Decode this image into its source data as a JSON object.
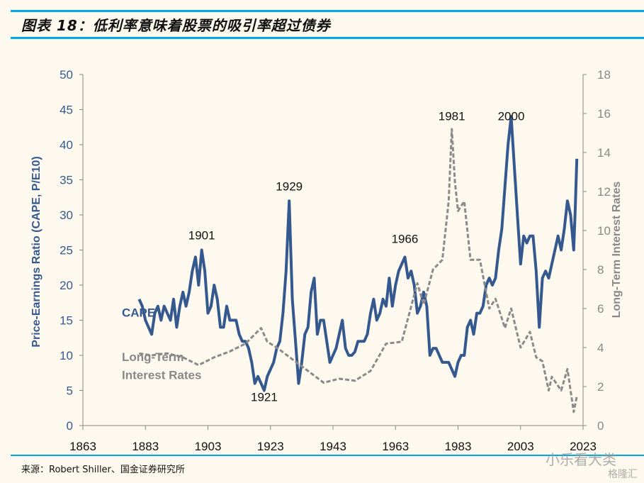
{
  "title": "图表 18：低利率意味着股票的吸引率超过债券",
  "source": "来源：Robert Shiller、国金证券研究所",
  "watermarks": [
    "小乐看大类",
    "格隆汇"
  ],
  "colors": {
    "cape": "#35598f",
    "rates": "#8a8a8a",
    "rule": "#00a9e8"
  },
  "chart_data": {
    "type": "line",
    "title": "",
    "xlabel": "",
    "ylabel": "Price-Earnings Ratio (CAPE, P/E10)",
    "y2label": "Long-Term Interest Rates",
    "xlim": [
      1863,
      2023
    ],
    "ylim": [
      0,
      50
    ],
    "y2lim": [
      0,
      18
    ],
    "xticks": [
      "1863",
      "1883",
      "1903",
      "1923",
      "1943",
      "1963",
      "1983",
      "2003",
      "2023"
    ],
    "yticks": [
      "0",
      "5",
      "10",
      "15",
      "20",
      "25",
      "30",
      "35",
      "40",
      "45",
      "50"
    ],
    "y2ticks": [
      "0",
      "2",
      "4",
      "6",
      "8",
      "10",
      "12",
      "14",
      "16",
      "18"
    ],
    "grid": false,
    "series": [
      {
        "name": "CAPE",
        "axis": "left",
        "style": "solid",
        "x": [
          1881,
          1882,
          1883,
          1884,
          1885,
          1886,
          1887,
          1888,
          1889,
          1890,
          1891,
          1892,
          1893,
          1894,
          1895,
          1896,
          1897,
          1898,
          1899,
          1900,
          1901,
          1902,
          1903,
          1904,
          1905,
          1906,
          1907,
          1908,
          1909,
          1910,
          1911,
          1912,
          1913,
          1914,
          1915,
          1916,
          1917,
          1918,
          1919,
          1920,
          1921,
          1922,
          1923,
          1924,
          1925,
          1926,
          1927,
          1928,
          1929,
          1930,
          1931,
          1932,
          1933,
          1934,
          1935,
          1936,
          1937,
          1938,
          1939,
          1940,
          1941,
          1942,
          1943,
          1944,
          1945,
          1946,
          1947,
          1948,
          1949,
          1950,
          1951,
          1952,
          1953,
          1954,
          1955,
          1956,
          1957,
          1958,
          1959,
          1960,
          1961,
          1962,
          1963,
          1964,
          1965,
          1966,
          1967,
          1968,
          1969,
          1970,
          1971,
          1972,
          1973,
          1974,
          1975,
          1976,
          1977,
          1978,
          1979,
          1980,
          1981,
          1982,
          1983,
          1984,
          1985,
          1986,
          1987,
          1988,
          1989,
          1990,
          1991,
          1992,
          1993,
          1994,
          1995,
          1996,
          1997,
          1998,
          1999,
          2000,
          2001,
          2002,
          2003,
          2004,
          2005,
          2006,
          2007,
          2008,
          2009,
          2010,
          2011,
          2012,
          2013,
          2014,
          2015,
          2016,
          2017,
          2018,
          2019,
          2020,
          2020.5,
          2021
        ],
        "values": [
          18,
          17,
          15,
          14,
          13,
          16,
          17,
          15,
          17,
          16,
          15,
          18,
          14,
          17,
          19,
          17,
          19,
          22,
          24,
          20,
          25,
          22,
          16,
          17,
          20,
          18,
          14,
          14,
          17,
          15,
          15,
          15,
          13,
          12,
          12,
          11,
          9,
          6,
          7,
          6,
          5,
          7,
          8,
          9,
          11,
          12,
          16,
          22,
          32,
          18,
          12,
          6,
          9,
          13,
          14,
          19,
          21,
          13,
          15,
          15,
          12,
          9,
          10,
          11,
          13,
          15,
          11,
          10,
          10,
          10.5,
          12,
          12,
          12,
          13,
          16,
          18,
          15,
          16,
          18,
          17,
          21,
          17,
          20,
          22,
          23,
          24,
          21,
          22,
          20,
          16,
          17,
          19,
          17,
          10,
          11,
          11,
          10,
          9,
          9,
          9,
          8,
          7,
          9,
          10,
          10,
          14,
          15,
          13,
          16,
          16,
          17,
          20,
          21,
          20,
          21,
          25,
          28,
          34,
          40,
          44,
          37,
          30,
          23,
          27,
          26,
          27,
          27,
          22,
          14,
          21,
          22,
          21,
          23,
          25,
          27,
          25,
          28,
          32,
          30,
          25,
          31,
          38
        ]
      },
      {
        "name": "Long-Term Interest Rates",
        "axis": "right",
        "style": "dashed",
        "x": [
          1881,
          1885,
          1890,
          1895,
          1900,
          1905,
          1910,
          1915,
          1920,
          1922,
          1925,
          1930,
          1935,
          1940,
          1945,
          1950,
          1955,
          1960,
          1965,
          1970,
          1972,
          1975,
          1978,
          1980,
          1981,
          1982,
          1983,
          1985,
          1987,
          1990,
          1993,
          1995,
          1998,
          2000,
          2003,
          2006,
          2008,
          2010,
          2012,
          2013,
          2016,
          2018,
          2020,
          2021
        ],
        "values": [
          3.7,
          3.6,
          3.7,
          3.5,
          3.1,
          3.5,
          3.8,
          4.2,
          5.0,
          4.3,
          4.0,
          3.4,
          2.8,
          2.2,
          2.4,
          2.3,
          2.8,
          4.2,
          4.3,
          7.3,
          6.2,
          8.0,
          8.5,
          11.5,
          15.2,
          12.5,
          11.0,
          11.5,
          8.5,
          8.5,
          6.0,
          6.5,
          5.0,
          6.0,
          4.0,
          4.8,
          3.5,
          3.3,
          1.8,
          2.5,
          1.8,
          2.9,
          0.7,
          1.5
        ]
      }
    ],
    "annotations": [
      {
        "text": "1901",
        "x": 1901,
        "y": 26.5
      },
      {
        "text": "1929",
        "x": 1929,
        "y": 33.5
      },
      {
        "text": "1966",
        "x": 1966,
        "y": 26
      },
      {
        "text": "1981",
        "x": 1981,
        "y": 43.5
      },
      {
        "text": "2000",
        "x": 2000,
        "y": 43.5
      },
      {
        "text": "1921",
        "x": 1921,
        "y": 3.5
      },
      {
        "text": "CAPE",
        "x": 1874,
        "y": 15.5
      },
      {
        "text": "Long-Term",
        "x": 1874,
        "y": 9.2
      },
      {
        "text": "Interest Rates",
        "x": 1874,
        "y": 6.6
      }
    ]
  }
}
